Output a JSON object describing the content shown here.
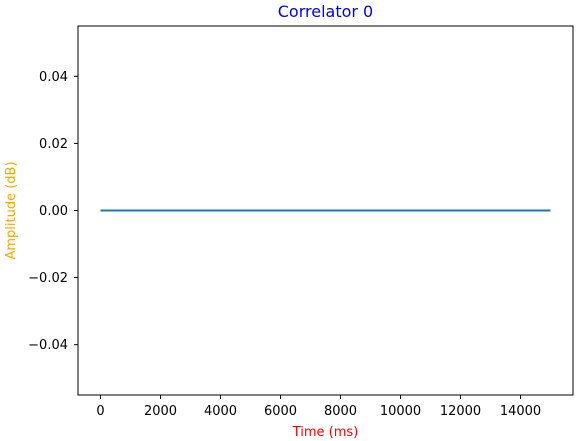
{
  "chart_data": {
    "type": "line",
    "title": "Correlator 0",
    "xlabel": "Time (ms)",
    "ylabel": "Amplitude (dB)",
    "xlim": [
      -750,
      15750
    ],
    "ylim": [
      -0.055,
      0.055
    ],
    "x_ticks": [
      0,
      2000,
      4000,
      6000,
      8000,
      10000,
      12000,
      14000
    ],
    "x_tick_labels": [
      "0",
      "2000",
      "4000",
      "6000",
      "8000",
      "10000",
      "12000",
      "14000"
    ],
    "y_ticks": [
      0.04,
      0.02,
      0.0,
      -0.02,
      -0.04
    ],
    "y_tick_labels": [
      "0.04",
      "0.02",
      "0.00",
      "−0.02",
      "−0.04"
    ],
    "grid": false,
    "series": [
      {
        "x": [
          0,
          15000
        ],
        "y": [
          0,
          0
        ],
        "color": "#1f77b4"
      }
    ],
    "colors": {
      "title": "#0000ff",
      "xlabel": "#ff0000",
      "ylabel": "#ffa500",
      "line": "#1f77b4",
      "axes": "#000000"
    }
  }
}
